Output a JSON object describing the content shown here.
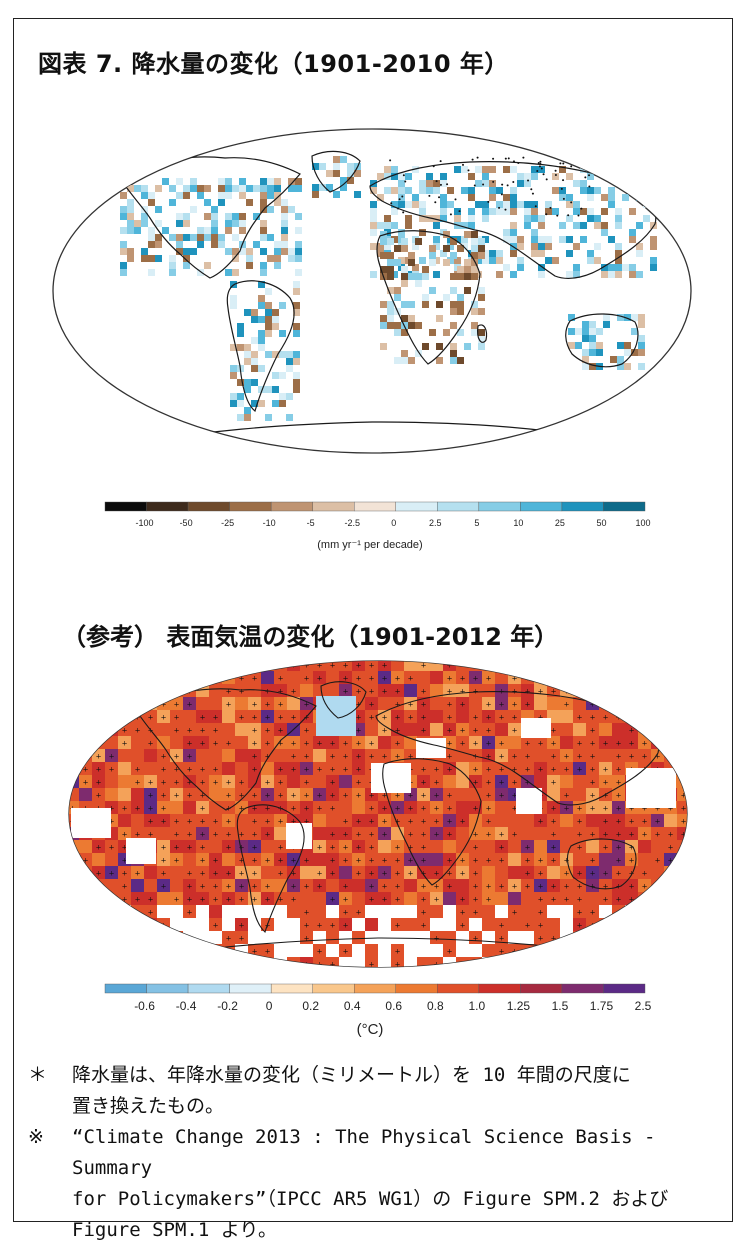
{
  "figure1": {
    "title": "図表 7. 降水量の変化（1901-2010 年）",
    "colorbar": {
      "ticks": [
        "-100",
        "-50",
        "-25",
        "-10",
        "-5",
        "-2.5",
        "0",
        "2.5",
        "5",
        "10",
        "25",
        "50",
        "100"
      ],
      "colors": [
        "#0b0b0b",
        "#3d2a1c",
        "#6e4a2c",
        "#9c6e47",
        "#bf9472",
        "#dcbfa5",
        "#f2e3d6",
        "#d9eef6",
        "#b5e0ef",
        "#86cde6",
        "#4fb5d9",
        "#1f93bd",
        "#0e6b8a"
      ],
      "unit": "(mm yr⁻¹ per decade)"
    }
  },
  "figure2": {
    "title": "（参考） 表面気温の変化（1901-2012 年）",
    "colorbar": {
      "ticks": [
        "-0.6",
        "-0.4",
        "-0.2",
        "0",
        "0.2",
        "0.4",
        "0.6",
        "0.8",
        "1.0",
        "1.25",
        "1.5",
        "1.75",
        "2.5"
      ],
      "colors": [
        "#5aa7d6",
        "#84c1e4",
        "#b0daf0",
        "#dff0f8",
        "#fde3c2",
        "#f9c78c",
        "#f4a259",
        "#ec7a32",
        "#e0502a",
        "#cc2f2a",
        "#a62a40",
        "#7e2b6e",
        "#5b2a86"
      ],
      "unit": "(°C)"
    }
  },
  "notes": [
    {
      "mark": "＊",
      "text": "降水量は、年降水量の変化（ミリメートル）を 10 年間の尺度に",
      "cont": "置き換えたもの。"
    },
    {
      "mark": "※",
      "text": "“Climate Change 2013 : The Physical Science Basis - Summary",
      "cont": "for Policymakers”（IPCC AR5 WG1）の Figure SPM.2 および",
      "cont2": "Figure SPM.1 より。"
    }
  ]
}
